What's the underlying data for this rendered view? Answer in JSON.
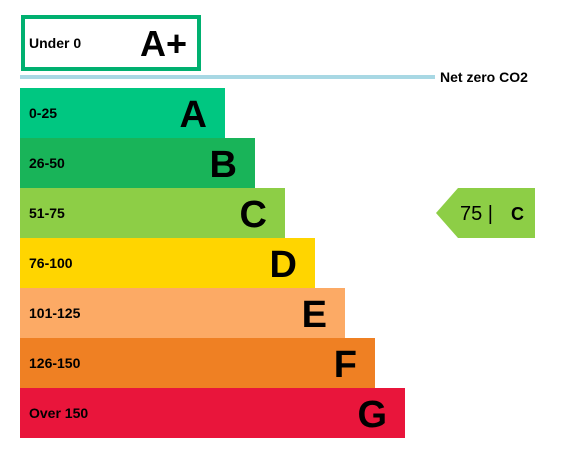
{
  "chart_data": {
    "type": "bar",
    "top_band": {
      "range": "Under 0",
      "letter": "A+",
      "color": "#00b070"
    },
    "net_zero_label": "Net zero CO2",
    "net_zero_line_color": "#a8d8e4",
    "bands": [
      {
        "range": "0-25",
        "letter": "A",
        "color": "#00c781"
      },
      {
        "range": "26-50",
        "letter": "B",
        "color": "#19b459"
      },
      {
        "range": "51-75",
        "letter": "C",
        "color": "#8dce46"
      },
      {
        "range": "76-100",
        "letter": "D",
        "color": "#ffd500"
      },
      {
        "range": "101-125",
        "letter": "E",
        "color": "#fcaa65"
      },
      {
        "range": "126-150",
        "letter": "F",
        "color": "#ef8023"
      },
      {
        "range": "Over 150",
        "letter": "G",
        "color": "#e9153b"
      }
    ],
    "current": {
      "value": "75 |",
      "letter": "C",
      "color": "#8dce46",
      "band_index": 2
    }
  }
}
